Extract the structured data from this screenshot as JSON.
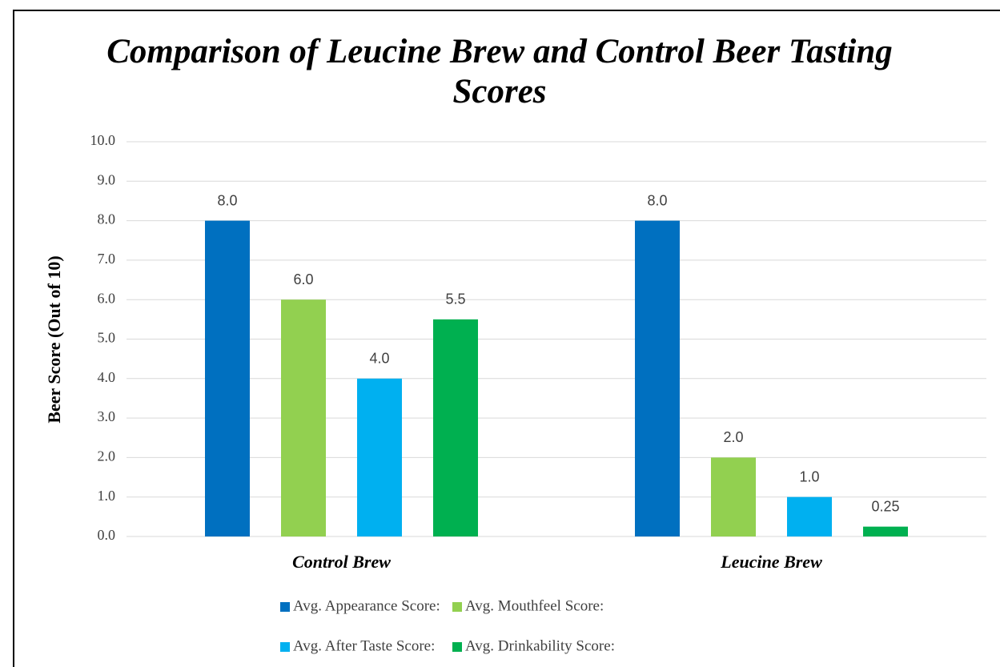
{
  "chart_data": {
    "type": "bar",
    "title": "Comparison of Leucine Brew and Control Beer Tasting Scores",
    "y_label": "Beer Score (Out of 10)",
    "categories": [
      "Control Brew",
      "Leucine Brew"
    ],
    "series": [
      {
        "name": "Avg. Appearance Score:",
        "color": "#0070c0",
        "values": [
          8,
          8
        ],
        "value_labels": [
          "8.0",
          "8.0"
        ]
      },
      {
        "name": "Avg. Mouthfeel Score:",
        "color": "#92d050",
        "values": [
          6,
          2
        ],
        "value_labels": [
          "6.0",
          "2.0"
        ]
      },
      {
        "name": "Avg. After Taste Score:",
        "color": "#00b0f0",
        "values": [
          4,
          1
        ],
        "value_labels": [
          "4.0",
          "1.0"
        ]
      },
      {
        "name": "Avg. Drinkability Score:",
        "color": "#00b050",
        "values": [
          5.5,
          0.25
        ],
        "value_labels": [
          "5.5",
          "0.25"
        ]
      }
    ],
    "ylim": [
      0,
      10
    ],
    "yticks": [
      {
        "value": 0,
        "label": "0.0"
      },
      {
        "value": 1,
        "label": "1.0"
      },
      {
        "value": 2,
        "label": "2.0"
      },
      {
        "value": 3,
        "label": "3.0"
      },
      {
        "value": 4,
        "label": "4.0"
      },
      {
        "value": 5,
        "label": "5.0"
      },
      {
        "value": 6,
        "label": "6.0"
      },
      {
        "value": 7,
        "label": "7.0"
      },
      {
        "value": 8,
        "label": "8.0"
      },
      {
        "value": 9,
        "label": "9.0"
      },
      {
        "value": 10,
        "label": "10.0"
      }
    ],
    "grid": true,
    "legend": "bottom"
  }
}
